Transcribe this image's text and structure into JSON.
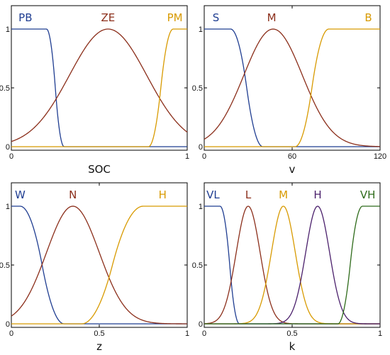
{
  "chart_data": [
    {
      "type": "line",
      "xlabel": "SOC",
      "xlim": [
        0,
        1
      ],
      "ylim": [
        0,
        1
      ],
      "xticks": [
        0,
        1
      ],
      "xtick_labels": [
        "0",
        "1"
      ],
      "yticks": [
        0,
        0.5,
        1
      ],
      "ytick_labels": [
        "0",
        "0.5",
        "1"
      ],
      "series": [
        {
          "name": "PB",
          "color": "#1f3d91",
          "shape": "zmf",
          "params": [
            0.2,
            0.3
          ],
          "label_x": 0.08
        },
        {
          "name": "ZE",
          "color": "#8b2e1a",
          "shape": "gauss",
          "params": [
            0.55,
            0.22
          ],
          "label_x": 0.55
        },
        {
          "name": "PM",
          "color": "#d89a00",
          "shape": "smf",
          "params": [
            0.78,
            0.92
          ],
          "label_x": 0.93
        }
      ]
    },
    {
      "type": "line",
      "xlabel": "v",
      "xlim": [
        0,
        120
      ],
      "ylim": [
        0,
        1
      ],
      "xticks": [
        0,
        60,
        120
      ],
      "xtick_labels": [
        "0",
        "60",
        "120"
      ],
      "yticks": [
        0,
        0.5,
        1
      ],
      "ytick_labels": [
        "0",
        "0.5",
        "1"
      ],
      "series": [
        {
          "name": "S",
          "color": "#1f3d91",
          "shape": "zmf",
          "params": [
            18,
            40
          ],
          "label_x": 8
        },
        {
          "name": "M",
          "color": "#8b2e1a",
          "shape": "gauss",
          "params": [
            47,
            20
          ],
          "label_x": 46
        },
        {
          "name": "B",
          "color": "#d89a00",
          "shape": "smf",
          "params": [
            62,
            85
          ],
          "label_x": 112
        }
      ]
    },
    {
      "type": "line",
      "xlabel": "z",
      "xlim": [
        0,
        1
      ],
      "ylim": [
        0,
        1
      ],
      "xticks": [
        0,
        0.5,
        1
      ],
      "xtick_labels": [
        "0",
        "0.5",
        "1"
      ],
      "yticks": [
        0,
        0.5,
        1
      ],
      "ytick_labels": [
        "0",
        "0.5",
        "1"
      ],
      "series": [
        {
          "name": "W",
          "color": "#1f3d91",
          "shape": "zmf",
          "params": [
            0.05,
            0.3
          ],
          "label_x": 0.05
        },
        {
          "name": "N",
          "color": "#8b2e1a",
          "shape": "gauss",
          "params": [
            0.35,
            0.15
          ],
          "label_x": 0.35
        },
        {
          "name": "H",
          "color": "#d89a00",
          "shape": "smf",
          "params": [
            0.4,
            0.75
          ],
          "label_x": 0.86
        }
      ]
    },
    {
      "type": "line",
      "xlabel": "k",
      "xlim": [
        0,
        1
      ],
      "ylim": [
        0,
        1
      ],
      "xticks": [
        0,
        0.5,
        1
      ],
      "xtick_labels": [
        "0",
        "0.5",
        "1"
      ],
      "yticks": [
        0,
        0.5,
        1
      ],
      "ytick_labels": [
        "0",
        "0.5",
        "1"
      ],
      "series": [
        {
          "name": "VL",
          "color": "#1f3d91",
          "shape": "zmf",
          "params": [
            0.09,
            0.2
          ],
          "label_x": 0.05
        },
        {
          "name": "L",
          "color": "#8b2e1a",
          "shape": "gauss",
          "params": [
            0.25,
            0.068
          ],
          "label_x": 0.25
        },
        {
          "name": "M",
          "color": "#d89a00",
          "shape": "gauss",
          "params": [
            0.45,
            0.068
          ],
          "label_x": 0.45
        },
        {
          "name": "H",
          "color": "#4a1f6b",
          "shape": "gauss",
          "params": [
            0.645,
            0.068
          ],
          "label_x": 0.645
        },
        {
          "name": "VH",
          "color": "#2e6b1a",
          "shape": "smf",
          "params": [
            0.76,
            0.9
          ],
          "label_x": 0.93
        }
      ]
    }
  ]
}
